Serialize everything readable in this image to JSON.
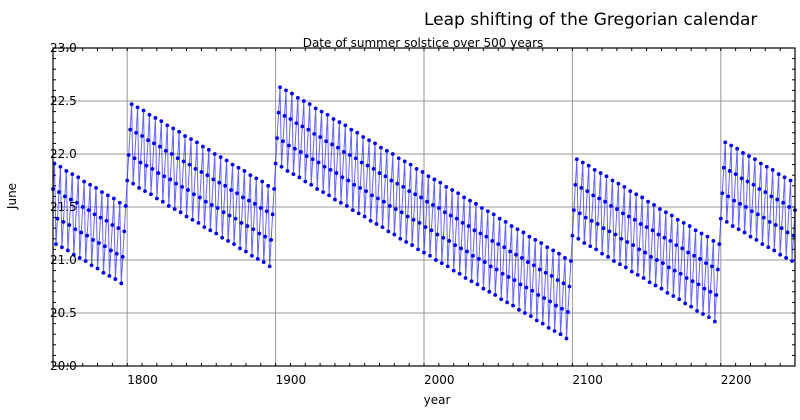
{
  "chart_data": {
    "type": "line",
    "title": "Leap shifting of the Gregorian calendar",
    "subtitle": "Date of summer solstice over 500 years",
    "xlabel": "year",
    "ylabel": "June",
    "xlim": [
      1750,
      2250
    ],
    "ylim": [
      20.0,
      23.0
    ],
    "x_start": 1750,
    "x_end": 2250,
    "x_step": 1,
    "xticks": [
      "1800",
      "1900",
      "2000",
      "2100",
      "2200"
    ],
    "yticks": [
      "20.0",
      "20.5",
      "21.0",
      "21.5",
      "22.0",
      "22.5",
      "23.0"
    ],
    "grid": true,
    "marker": "dot",
    "color": "#0000ff",
    "values": [
      21.67,
      21.91,
      21.15,
      21.39,
      21.64,
      21.88,
      21.12,
      21.36,
      21.6,
      21.84,
      21.09,
      21.33,
      21.57,
      21.81,
      21.05,
      21.29,
      21.54,
      21.78,
      21.02,
      21.26,
      21.5,
      21.74,
      20.99,
      21.23,
      21.47,
      21.71,
      20.95,
      21.19,
      21.43,
      21.68,
      20.92,
      21.16,
      21.4,
      21.64,
      20.88,
      21.13,
      21.37,
      21.61,
      20.85,
      21.09,
      21.33,
      21.58,
      20.82,
      21.06,
      21.3,
      21.54,
      20.78,
      21.03,
      21.27,
      21.51,
      21.75,
      21.99,
      22.23,
      22.47,
      21.72,
      21.96,
      22.2,
      22.44,
      21.68,
      21.92,
      22.17,
      22.41,
      21.65,
      21.89,
      22.13,
      22.37,
      21.62,
      21.86,
      22.1,
      22.34,
      21.58,
      21.82,
      22.07,
      22.31,
      21.55,
      21.79,
      22.03,
      22.27,
      21.51,
      21.76,
      22.0,
      22.24,
      21.48,
      21.72,
      21.96,
      22.21,
      21.45,
      21.69,
      21.93,
      22.17,
      21.41,
      21.66,
      21.9,
      22.14,
      21.38,
      21.62,
      21.86,
      22.11,
      21.35,
      21.59,
      21.83,
      22.07,
      21.31,
      21.55,
      21.8,
      22.04,
      21.28,
      21.52,
      21.76,
      22.0,
      21.25,
      21.49,
      21.73,
      21.97,
      21.21,
      21.45,
      21.7,
      21.94,
      21.18,
      21.42,
      21.66,
      21.9,
      21.15,
      21.39,
      21.63,
      21.87,
      21.11,
      21.35,
      21.59,
      21.84,
      21.08,
      21.32,
      21.56,
      21.8,
      21.04,
      21.29,
      21.53,
      21.77,
      21.01,
      21.25,
      21.49,
      21.74,
      20.98,
      21.22,
      21.46,
      21.7,
      20.94,
      21.19,
      21.43,
      21.67,
      21.91,
      22.15,
      22.39,
      22.63,
      21.88,
      22.12,
      22.36,
      22.6,
      21.84,
      22.08,
      22.33,
      22.57,
      21.81,
      22.05,
      22.29,
      22.53,
      21.78,
      22.02,
      22.26,
      22.5,
      21.74,
      21.98,
      22.23,
      22.47,
      21.71,
      21.95,
      22.19,
      22.43,
      21.67,
      21.92,
      22.16,
      22.4,
      21.64,
      21.88,
      22.12,
      22.37,
      21.61,
      21.85,
      22.09,
      22.33,
      21.57,
      21.82,
      22.06,
      22.3,
      21.54,
      21.78,
      22.02,
      22.27,
      21.51,
      21.75,
      21.99,
      22.23,
      21.47,
      21.71,
      21.96,
      22.2,
      21.44,
      21.68,
      21.92,
      22.16,
      21.41,
      21.65,
      21.89,
      22.13,
      21.37,
      21.61,
      21.86,
      22.1,
      21.34,
      21.58,
      21.82,
      22.06,
      21.31,
      21.55,
      21.79,
      22.03,
      21.27,
      21.51,
      21.75,
      22.0,
      21.24,
      21.48,
      21.72,
      21.96,
      21.2,
      21.45,
      21.69,
      21.93,
      21.17,
      21.41,
      21.65,
      21.9,
      21.14,
      21.38,
      21.62,
      21.86,
      21.1,
      21.35,
      21.59,
      21.83,
      21.07,
      21.31,
      21.55,
      21.79,
      21.04,
      21.28,
      21.52,
      21.76,
      21.0,
      21.24,
      21.49,
      21.73,
      20.97,
      21.21,
      21.45,
      21.69,
      20.94,
      21.18,
      21.42,
      21.66,
      20.9,
      21.14,
      21.39,
      21.63,
      20.87,
      21.11,
      21.35,
      21.59,
      20.83,
      21.08,
      21.32,
      21.56,
      20.8,
      21.04,
      21.28,
      21.53,
      20.77,
      21.01,
      21.25,
      21.49,
      20.73,
      20.98,
      21.22,
      21.46,
      20.7,
      20.94,
      21.18,
      21.43,
      20.67,
      20.91,
      21.15,
      21.39,
      20.63,
      20.87,
      21.12,
      21.36,
      20.6,
      20.84,
      21.08,
      21.32,
      20.57,
      20.81,
      21.05,
      21.29,
      20.53,
      20.77,
      21.02,
      21.26,
      20.5,
      20.74,
      20.98,
      21.22,
      20.47,
      20.71,
      20.95,
      21.19,
      20.43,
      20.67,
      20.91,
      21.16,
      20.4,
      20.64,
      20.88,
      21.12,
      20.36,
      20.61,
      20.85,
      21.09,
      20.33,
      20.57,
      20.81,
      21.06,
      20.3,
      20.54,
      20.78,
      21.02,
      20.26,
      20.51,
      20.75,
      20.99,
      21.23,
      21.47,
      21.71,
      21.95,
      21.2,
      21.44,
      21.68,
      21.92,
      21.16,
      21.4,
      21.65,
      21.89,
      21.13,
      21.37,
      21.61,
      21.85,
      21.1,
      21.34,
      21.58,
      21.82,
      21.06,
      21.3,
      21.55,
      21.79,
      21.03,
      21.27,
      21.51,
      21.75,
      20.99,
      21.24,
      21.48,
      21.72,
      20.96,
      21.2,
      21.44,
      21.69,
      20.93,
      21.17,
      21.41,
      21.65,
      20.89,
      21.14,
      21.38,
      21.62,
      20.86,
      21.1,
      21.34,
      21.59,
      20.83,
      21.07,
      21.31,
      21.55,
      20.79,
      21.03,
      21.28,
      21.52,
      20.76,
      21.0,
      21.24,
      21.48,
      20.73,
      20.97,
      21.21,
      21.45,
      20.69,
      20.93,
      21.18,
      21.42,
      20.66,
      20.9,
      21.14,
      21.38,
      20.63,
      20.87,
      21.11,
      21.35,
      20.59,
      20.83,
      21.07,
      21.32,
      20.56,
      20.8,
      21.04,
      21.28,
      20.52,
      20.77,
      21.01,
      21.25,
      20.49,
      20.73,
      20.97,
      21.22,
      20.46,
      20.7,
      20.94,
      21.18,
      20.42,
      20.67,
      20.91,
      21.15,
      21.39,
      21.63,
      21.87,
      22.11,
      21.36,
      21.6,
      21.84,
      22.08,
      21.32,
      21.56,
      21.81,
      22.05,
      21.29,
      21.53,
      21.77,
      22.01,
      21.26,
      21.5,
      21.74,
      21.98,
      21.22,
      21.46,
      21.71,
      21.95,
      21.19,
      21.43,
      21.67,
      21.91,
      21.15,
      21.4,
      21.64,
      21.88,
      21.12,
      21.36,
      21.6,
      21.85,
      21.09,
      21.33,
      21.57,
      21.81,
      21.05,
      21.3,
      21.54,
      21.78,
      21.02,
      21.26,
      21.5,
      21.75,
      20.99,
      21.23,
      21.47
    ]
  }
}
